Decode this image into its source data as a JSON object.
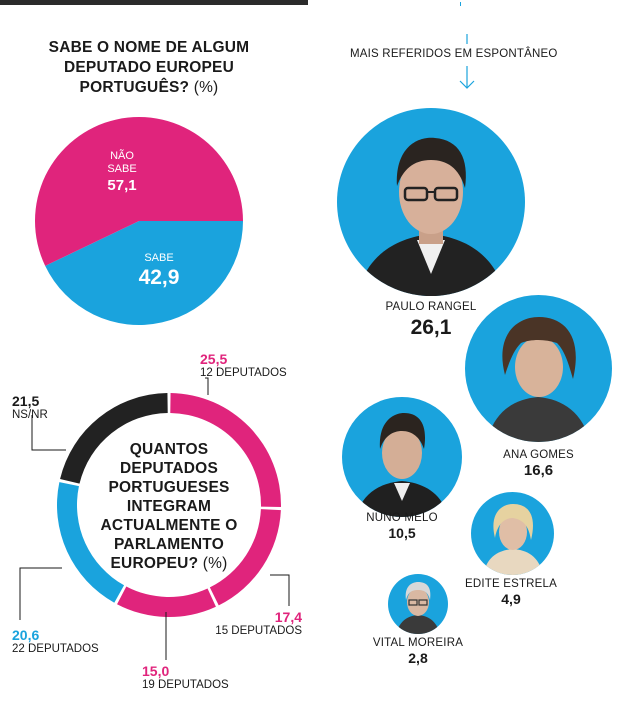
{
  "pie_question": {
    "title": "SABE O NOME DE ALGUM DEPUTADO EUROPEU PORTUGUÊS?",
    "unit": "(%)"
  },
  "ring_question": {
    "title": "QUANTOS DEPUTADOS PORTUGUESES INTEGRAM ACTUALMENTE O PARLAMENTO EUROPEU?",
    "unit": "(%)"
  },
  "spontaneous": {
    "label": "MAIS REFERIDOS EM ESPONTÂNEO"
  },
  "colors": {
    "magenta": "#e0247c",
    "cyan": "#1aa3dd",
    "black": "#222222"
  },
  "chart_data": [
    {
      "type": "pie",
      "title": "SABE O NOME DE ALGUM DEPUTADO EUROPEU PORTUGUÊS? (%)",
      "slices": [
        {
          "label_lines": [
            "NÃO",
            "SABE"
          ],
          "value": 57.1,
          "display": "57,1",
          "color": "#e0247c"
        },
        {
          "label_lines": [
            "SABE"
          ],
          "value": 42.9,
          "display": "42,9",
          "color": "#1aa3dd"
        }
      ]
    },
    {
      "type": "pie",
      "title": "QUANTOS DEPUTADOS PORTUGUESES INTEGRAM ACTUALMENTE O PARLAMENTO EUROPEU? (%)",
      "slices": [
        {
          "value": 25.5,
          "display": "25,5",
          "answer": "12 DEPUTADOS",
          "color": "#e0247c"
        },
        {
          "value": 17.4,
          "display": "17,4",
          "answer": "15 DEPUTADOS",
          "color": "#e0247c"
        },
        {
          "value": 15.0,
          "display": "15,0",
          "answer": "19 DEPUTADOS",
          "color": "#e0247c"
        },
        {
          "value": 20.6,
          "display": "20,6",
          "answer": "22 DEPUTADOS",
          "color": "#1aa3dd"
        },
        {
          "value": 21.5,
          "display": "21,5",
          "answer": "NS/NR",
          "color": "#222222"
        }
      ]
    },
    {
      "type": "bubble",
      "title": "MAIS REFERIDOS EM ESPONTÂNEO",
      "points": [
        {
          "name": "PAULO RANGEL",
          "value": 26.1,
          "display": "26,1"
        },
        {
          "name": "ANA GOMES",
          "value": 16.6,
          "display": "16,6"
        },
        {
          "name": "NUNO MELO",
          "value": 10.5,
          "display": "10,5"
        },
        {
          "name": "EDITE ESTRELA",
          "value": 4.9,
          "display": "4,9"
        },
        {
          "name": "VITAL MOREIRA",
          "value": 2.8,
          "display": "2,8"
        }
      ]
    }
  ]
}
